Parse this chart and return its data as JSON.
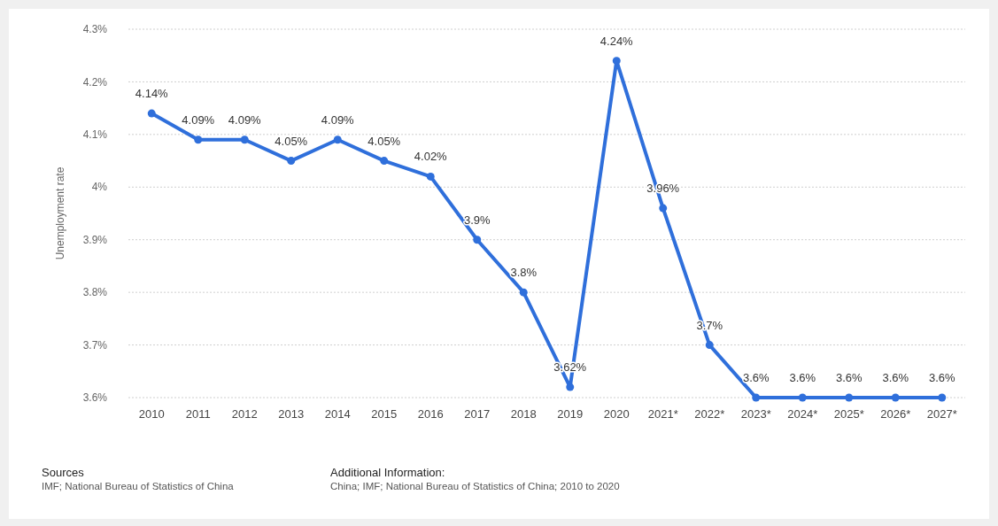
{
  "chart_data": {
    "type": "line",
    "ylabel": "Unemployment rate",
    "categories": [
      "2010",
      "2011",
      "2012",
      "2013",
      "2014",
      "2015",
      "2016",
      "2017",
      "2018",
      "2019",
      "2020",
      "2021*",
      "2022*",
      "2023*",
      "2024*",
      "2025*",
      "2026*",
      "2027*"
    ],
    "series": [
      {
        "color": "#2f6fdb",
        "values": [
          4.14,
          4.09,
          4.09,
          4.05,
          4.09,
          4.05,
          4.02,
          3.9,
          3.8,
          3.62,
          4.24,
          3.96,
          3.7,
          3.6,
          3.6,
          3.6,
          3.6,
          3.6
        ],
        "value_labels": [
          "4.14%",
          "4.09%",
          "4.09%",
          "4.05%",
          "4.09%",
          "4.05%",
          "4.02%",
          "3.9%",
          "3.8%",
          "3.62%",
          "4.24%",
          "3.96%",
          "3.7%",
          "3.6%",
          "3.6%",
          "3.6%",
          "3.6%",
          "3.6%"
        ]
      }
    ],
    "ylim": [
      3.6,
      4.3
    ],
    "yticks": [
      {
        "value": 3.6,
        "label": "3.6%"
      },
      {
        "value": 3.7,
        "label": "3.7%"
      },
      {
        "value": 3.8,
        "label": "3.8%"
      },
      {
        "value": 3.9,
        "label": "3.9%"
      },
      {
        "value": 4,
        "label": "4%"
      },
      {
        "value": 4.1,
        "label": "4.1%"
      },
      {
        "value": 4.2,
        "label": "4.2%"
      },
      {
        "value": 4.3,
        "label": "4.3%"
      }
    ],
    "grid": "y",
    "marker": "circle",
    "line_style": "solid",
    "annotations": [
      "Sources",
      "IMF; National Bureau of Statistics of China",
      "Additional Information:",
      "China; IMF; National Bureau of Statistics of China; 2010 to 2020"
    ]
  }
}
